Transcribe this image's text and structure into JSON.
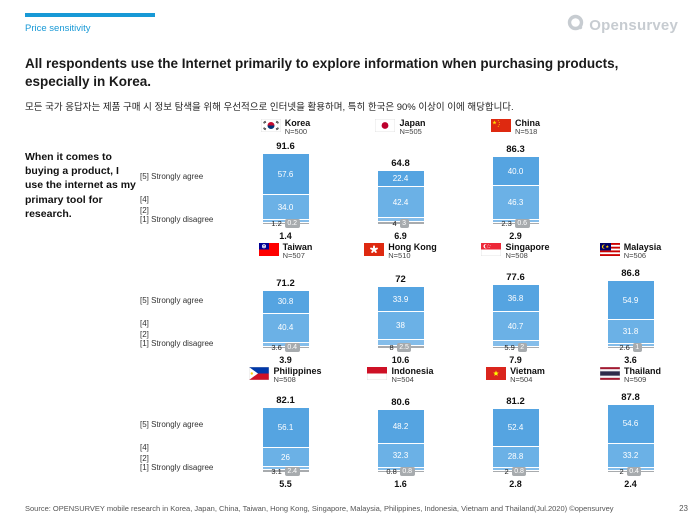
{
  "header": {
    "tag": "Price sensitivity",
    "logo": "Opensurvey"
  },
  "title": "All respondents use the Internet primarily to explore information when purchasing products, especially in Korea.",
  "subtitle_ko": "모든 국가 응답자는 제품 구매 시 정보 탐색을 위해 우선적으로 인터넷을 활용하며, 특히 한국은 90% 이상이 이에 해당합니다.",
  "footer": {
    "source": "Source: OPENSURVEY mobile research in Korea, Japan, China, Taiwan, Hong Kong, Singapore, Malaysia, Philippines, Indonesia, Vietnam and Thailand(Jul.2020) ©opensurvey",
    "page": "23"
  },
  "chart_data": {
    "type": "bar",
    "stacked": true,
    "unit": "%",
    "title": "When it comes to buying a product, I use the internet as my primary tool for research.",
    "scale_order": [
      "[5] Strongly agree",
      "[4]",
      "[2]",
      "[1] Strongly disagree"
    ],
    "colors": {
      "s5": "#55A4E1",
      "s4": "#6BB1E6",
      "s2": "#84BDEA",
      "s1": "#A8ABAE",
      "accent": "#1899D6"
    },
    "rows": [
      {
        "countries": [
          {
            "name": "Korea",
            "n": "N=500",
            "flag": "kr",
            "top2": "91.6",
            "bottom2": "1.4",
            "labels": [
              "57.6",
              "34.0",
              "1.2",
              "0.2"
            ],
            "values": [
              57.6,
              34.0,
              1.2,
              0.2
            ]
          },
          {
            "name": "Japan",
            "n": "N=505",
            "flag": "jp",
            "top2": "64.8",
            "bottom2": "6.9",
            "labels": [
              "22.4",
              "42.4",
              "4",
              "3"
            ],
            "values": [
              22.4,
              42.4,
              4,
              3
            ]
          },
          {
            "name": "China",
            "n": "N=518",
            "flag": "cn",
            "top2": "86.3",
            "bottom2": "2.9",
            "labels": [
              "40.0",
              "46.3",
              "2.3",
              "0.6"
            ],
            "values": [
              40.0,
              46.3,
              2.3,
              0.6
            ]
          }
        ]
      },
      {
        "countries": [
          {
            "name": "Taiwan",
            "n": "N=507",
            "flag": "tw",
            "top2": "71.2",
            "bottom2": "3.9",
            "labels": [
              "30.8",
              "40.4",
              "3.6",
              "0.4"
            ],
            "values": [
              30.8,
              40.4,
              3.6,
              0.4
            ]
          },
          {
            "name": "Hong Kong",
            "n": "N=510",
            "flag": "hk",
            "top2": "72",
            "bottom2": "10.6",
            "labels": [
              "33.9",
              "38",
              "8",
              "2.5"
            ],
            "values": [
              33.9,
              38,
              8,
              2.5
            ]
          },
          {
            "name": "Singapore",
            "n": "N=508",
            "flag": "sg",
            "top2": "77.6",
            "bottom2": "7.9",
            "labels": [
              "36.8",
              "40.7",
              "5.9",
              "2"
            ],
            "values": [
              36.8,
              40.7,
              5.9,
              2
            ]
          },
          {
            "name": "Malaysia",
            "n": "N=506",
            "flag": "my",
            "top2": "86.8",
            "bottom2": "3.6",
            "labels": [
              "54.9",
              "31.8",
              "2.6",
              "1"
            ],
            "values": [
              54.9,
              31.8,
              2.6,
              1
            ]
          }
        ]
      },
      {
        "countries": [
          {
            "name": "Philippines",
            "n": "N=508",
            "flag": "ph",
            "top2": "82.1",
            "bottom2": "5.5",
            "labels": [
              "56.1",
              "26",
              "3.1",
              "2.4"
            ],
            "values": [
              56.1,
              26,
              3.1,
              2.4
            ]
          },
          {
            "name": "Indonesia",
            "n": "N=504",
            "flag": "id",
            "top2": "80.6",
            "bottom2": "1.6",
            "labels": [
              "48.2",
              "32.3",
              "0.8",
              "0.8"
            ],
            "values": [
              48.2,
              32.3,
              0.8,
              0.8
            ]
          },
          {
            "name": "Vietnam",
            "n": "N=504",
            "flag": "vn",
            "top2": "81.2",
            "bottom2": "2.8",
            "labels": [
              "52.4",
              "28.8",
              "2",
              "0.8"
            ],
            "values": [
              52.4,
              28.8,
              2,
              0.8
            ]
          },
          {
            "name": "Thailand",
            "n": "N=509",
            "flag": "th",
            "top2": "87.8",
            "bottom2": "2.4",
            "labels": [
              "54.6",
              "33.2",
              "2",
              "0.4"
            ],
            "values": [
              54.6,
              33.2,
              2,
              0.4
            ]
          }
        ]
      }
    ]
  }
}
